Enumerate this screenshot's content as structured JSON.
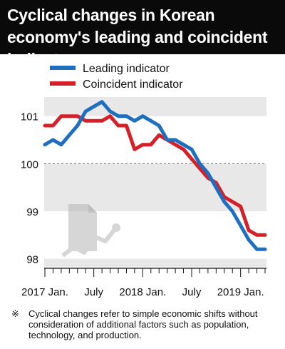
{
  "header": {
    "title": "Cyclical changes in Korean economy's leading and coincident indicators"
  },
  "footnote": {
    "mark": "※",
    "text": "Cyclical changes refer to simple economic shifts without consideration of additional factors such as population, technology, and production."
  },
  "chart_data": {
    "type": "line",
    "title": "Cyclical changes in Korean economy's leading and coincident indicators",
    "xlabel": "",
    "ylabel": "",
    "x_start": "2017-01",
    "x": [
      "2017-01",
      "2017-02",
      "2017-03",
      "2017-04",
      "2017-05",
      "2017-06",
      "2017-07",
      "2017-08",
      "2017-09",
      "2017-10",
      "2017-11",
      "2017-12",
      "2018-01",
      "2018-02",
      "2018-03",
      "2018-04",
      "2018-05",
      "2018-06",
      "2018-07",
      "2018-08",
      "2018-09",
      "2018-10",
      "2018-11",
      "2018-12",
      "2019-01",
      "2019-02",
      "2019-03",
      "2019-04"
    ],
    "x_tick_labels": [
      "2017 Jan.",
      "July",
      "2018 Jan.",
      "July",
      "2019 Jan."
    ],
    "x_tick_index": [
      0,
      6,
      12,
      18,
      24
    ],
    "ylim": [
      97.8,
      101.4
    ],
    "yticks": [
      98,
      99,
      100,
      101
    ],
    "ytick_labels": [
      "98",
      "99",
      "100",
      "101"
    ],
    "reference_line": 100,
    "legend_position": "top-left",
    "series": [
      {
        "name": "Leading indicator",
        "color": "#1f6fc0",
        "values": [
          100.4,
          100.5,
          100.4,
          100.6,
          100.8,
          101.1,
          101.2,
          101.3,
          101.1,
          101.0,
          101.0,
          100.9,
          101.0,
          100.9,
          100.8,
          100.5,
          100.5,
          100.4,
          100.3,
          100.0,
          99.8,
          99.5,
          99.2,
          99.0,
          98.7,
          98.4,
          98.2,
          98.2
        ]
      },
      {
        "name": "Coincident indicator",
        "color": "#d5202a",
        "values": [
          100.8,
          100.8,
          101.0,
          101.0,
          101.0,
          100.9,
          100.9,
          100.9,
          101.0,
          100.8,
          100.8,
          100.3,
          100.4,
          100.4,
          100.6,
          100.5,
          100.4,
          100.3,
          100.1,
          99.9,
          99.7,
          99.6,
          99.3,
          99.2,
          99.1,
          98.6,
          98.5,
          98.5
        ]
      }
    ]
  }
}
